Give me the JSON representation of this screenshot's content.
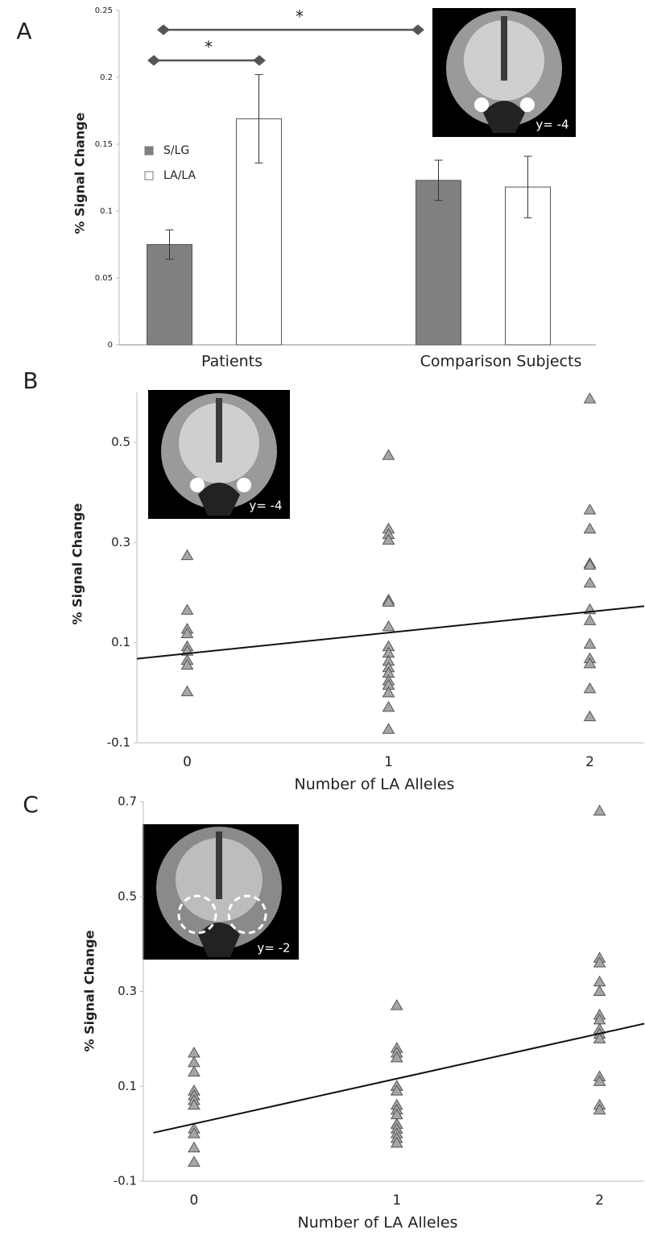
{
  "chart_data": [
    {
      "type": "bar",
      "panel": "A",
      "y_label": "% Signal Change",
      "categories": [
        "Patients",
        "Comparison Subjects"
      ],
      "series": [
        {
          "name": "S/LG",
          "color": "#808080",
          "values": [
            0.075,
            0.123
          ],
          "errors": [
            0.011,
            0.015
          ]
        },
        {
          "name": "LA/LA",
          "color": "#ffffff",
          "values": [
            0.169,
            0.118
          ],
          "errors": [
            0.033,
            0.023
          ]
        }
      ],
      "ylim": [
        0,
        0.25
      ],
      "yticks": [
        0,
        0.05,
        0.1,
        0.15,
        0.2,
        0.25
      ],
      "annotations": [
        "*",
        "*"
      ],
      "inset_label": "y= -4"
    },
    {
      "type": "scatter",
      "panel": "B",
      "y_label": "% Signal Change",
      "x_label": "Number of LA Alleles",
      "series": [
        {
          "color": "#a6a6a6",
          "x": [
            0,
            0,
            0,
            0,
            0,
            0,
            0,
            0,
            0,
            1,
            1,
            1,
            1,
            1,
            1,
            1,
            1,
            1,
            1,
            1,
            1,
            1,
            1,
            1,
            1,
            1,
            2,
            2,
            2,
            2,
            2,
            2,
            2,
            2,
            2,
            2,
            2,
            2,
            2
          ],
          "values": [
            0.274,
            0.165,
            0.127,
            0.118,
            0.092,
            0.083,
            0.065,
            0.055,
            0.002,
            0.474,
            0.327,
            0.316,
            0.305,
            0.185,
            0.181,
            0.132,
            0.092,
            0.079,
            0.063,
            0.05,
            0.039,
            0.024,
            0.015,
            0.0,
            -0.029,
            -0.073,
            0.587,
            0.365,
            0.327,
            0.258,
            0.255,
            0.219,
            0.166,
            0.144,
            0.097,
            0.068,
            0.058,
            0.008,
            -0.048
          ]
        }
      ],
      "fit": {
        "x": [
          -0.25,
          2.27
        ],
        "y": [
          0.068,
          0.173
        ]
      },
      "xlim": [
        -0.25,
        2.27
      ],
      "xticks": [
        0,
        1,
        2
      ],
      "ylim": [
        -0.1,
        0.6
      ],
      "yticks": [
        -0.1,
        0.1,
        0.3,
        0.5
      ],
      "inset_label": "y= -4"
    },
    {
      "type": "scatter",
      "panel": "C",
      "y_label": "% Signal Change",
      "x_label": "Number of LA Alleles",
      "series": [
        {
          "color": "#a6a6a6",
          "x": [
            0,
            0,
            0,
            0,
            0,
            0,
            0,
            0,
            0,
            0,
            0,
            1,
            1,
            1,
            1,
            1,
            1,
            1,
            1,
            1,
            1,
            1,
            1,
            1,
            1,
            1,
            1,
            2,
            2,
            2,
            2,
            2,
            2,
            2,
            2,
            2,
            2,
            2,
            2,
            2,
            2
          ],
          "values": [
            0.17,
            0.15,
            0.13,
            0.09,
            0.08,
            0.07,
            0.06,
            0.01,
            0.0,
            -0.03,
            -0.06,
            0.27,
            0.18,
            0.17,
            0.16,
            0.1,
            0.1,
            0.09,
            0.06,
            0.05,
            0.04,
            0.02,
            0.02,
            0.01,
            0.0,
            -0.01,
            -0.02,
            0.68,
            0.37,
            0.36,
            0.32,
            0.3,
            0.25,
            0.24,
            0.22,
            0.21,
            0.2,
            0.12,
            0.11,
            0.06,
            0.05
          ]
        }
      ],
      "fit": {
        "x": [
          -0.2,
          2.22
        ],
        "y": [
          0.002,
          0.232
        ]
      },
      "xlim": [
        -0.25,
        2.22
      ],
      "xticks": [
        0,
        1,
        2
      ],
      "ylim": [
        -0.1,
        0.7
      ],
      "yticks": [
        -0.1,
        0.1,
        0.3,
        0.5,
        0.7
      ],
      "inset_label": "y= -2"
    }
  ]
}
